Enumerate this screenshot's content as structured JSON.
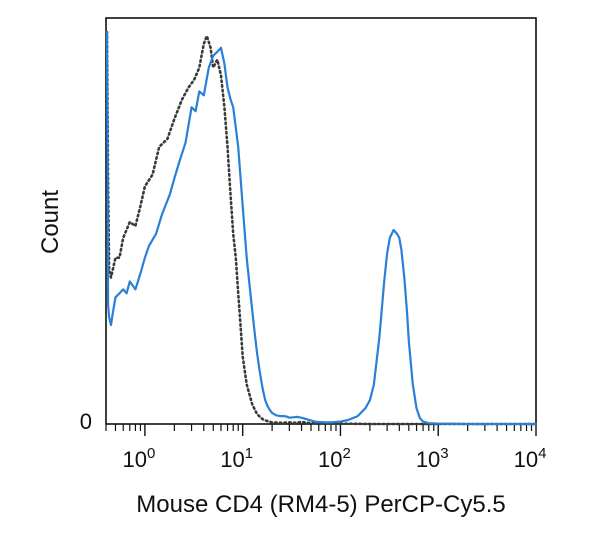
{
  "chart_data": {
    "type": "area",
    "title": "",
    "xlabel": "Mouse CD4 (RM4-5) PerCP-Cy5.5",
    "ylabel": "Count",
    "x_scale": "log",
    "xlim": [
      0.4,
      10000
    ],
    "ylim": [
      0,
      1
    ],
    "y_tick_labels": [
      "0"
    ],
    "x_tick_labels": [
      {
        "base": "10",
        "exp": "0",
        "value": 1
      },
      {
        "base": "10",
        "exp": "1",
        "value": 10
      },
      {
        "base": "10",
        "exp": "2",
        "value": 100
      },
      {
        "base": "10",
        "exp": "3",
        "value": 1000
      },
      {
        "base": "10",
        "exp": "4",
        "value": 10000
      }
    ],
    "grid": false,
    "legend": "none",
    "series": [
      {
        "style": "dotted",
        "color": "#3a3a3a",
        "x": [
          0.41,
          0.42,
          0.43,
          0.45,
          0.5,
          0.55,
          0.6,
          0.7,
          0.8,
          0.9,
          1.0,
          1.2,
          1.4,
          1.7,
          2.0,
          2.4,
          2.8,
          3.2,
          3.6,
          4.0,
          4.3,
          4.7,
          5.0,
          5.5,
          6.0,
          6.5,
          7.0,
          7.5,
          8.0,
          8.5,
          9.0,
          9.5,
          10.0,
          11.0,
          12.5,
          14.0,
          16.0,
          18.0,
          20.0,
          25.0,
          30.0,
          35.0,
          40.0,
          50.0,
          60.0,
          80.0,
          100.0,
          200.0,
          500.0,
          1000.0,
          2000.0,
          5000.0,
          10000.0
        ],
        "y": [
          0.99,
          0.6,
          0.39,
          0.37,
          0.42,
          0.42,
          0.47,
          0.51,
          0.5,
          0.55,
          0.6,
          0.63,
          0.7,
          0.72,
          0.77,
          0.82,
          0.85,
          0.87,
          0.9,
          0.96,
          0.98,
          0.95,
          0.9,
          0.92,
          0.88,
          0.8,
          0.7,
          0.58,
          0.48,
          0.42,
          0.33,
          0.25,
          0.17,
          0.1,
          0.05,
          0.025,
          0.012,
          0.007,
          0.004,
          0.003,
          0.004,
          0.003,
          0.005,
          0.002,
          0.003,
          0.001,
          0.001,
          0.0,
          0.0,
          0.0,
          0.0,
          0.0,
          0.0
        ]
      },
      {
        "style": "solid",
        "color": "#2a7fd8",
        "x": [
          0.41,
          0.42,
          0.43,
          0.45,
          0.47,
          0.5,
          0.55,
          0.6,
          0.65,
          0.7,
          0.8,
          0.9,
          1.0,
          1.1,
          1.3,
          1.5,
          1.8,
          2.0,
          2.3,
          2.6,
          3.0,
          3.3,
          3.6,
          4.0,
          4.5,
          5.0,
          5.5,
          6.0,
          6.5,
          7.0,
          7.5,
          8.0,
          9.0,
          10.0,
          11.0,
          12.0,
          13.0,
          14.0,
          15.0,
          16.0,
          17.0,
          18.0,
          19.0,
          20.0,
          22.0,
          24.0,
          26.0,
          28.0,
          30.0,
          33.0,
          36.0,
          40.0,
          45.0,
          50.0,
          55.0,
          60.0,
          70.0,
          80.0,
          100.0,
          120.0,
          150.0,
          180.0,
          200.0,
          220.0,
          250.0,
          280.0,
          300.0,
          320.0,
          350.0,
          380.0,
          400.0,
          420.0,
          450.0,
          480.0,
          500.0,
          550.0,
          600.0,
          650.0,
          700.0,
          800.0,
          1000.0,
          2000.0,
          5000.0,
          10000.0
        ],
        "y": [
          0.99,
          0.3,
          0.27,
          0.25,
          0.28,
          0.32,
          0.33,
          0.34,
          0.33,
          0.36,
          0.34,
          0.38,
          0.42,
          0.45,
          0.48,
          0.53,
          0.58,
          0.62,
          0.67,
          0.71,
          0.8,
          0.79,
          0.84,
          0.83,
          0.9,
          0.93,
          0.94,
          0.95,
          0.91,
          0.85,
          0.82,
          0.8,
          0.7,
          0.55,
          0.42,
          0.33,
          0.25,
          0.18,
          0.13,
          0.09,
          0.06,
          0.045,
          0.035,
          0.028,
          0.022,
          0.02,
          0.02,
          0.019,
          0.016,
          0.017,
          0.018,
          0.016,
          0.012,
          0.009,
          0.006,
          0.005,
          0.004,
          0.004,
          0.006,
          0.01,
          0.02,
          0.04,
          0.06,
          0.1,
          0.22,
          0.36,
          0.43,
          0.47,
          0.49,
          0.48,
          0.47,
          0.44,
          0.37,
          0.28,
          0.21,
          0.1,
          0.04,
          0.015,
          0.006,
          0.002,
          0.001,
          0.0,
          0.0,
          0.0
        ]
      }
    ]
  }
}
